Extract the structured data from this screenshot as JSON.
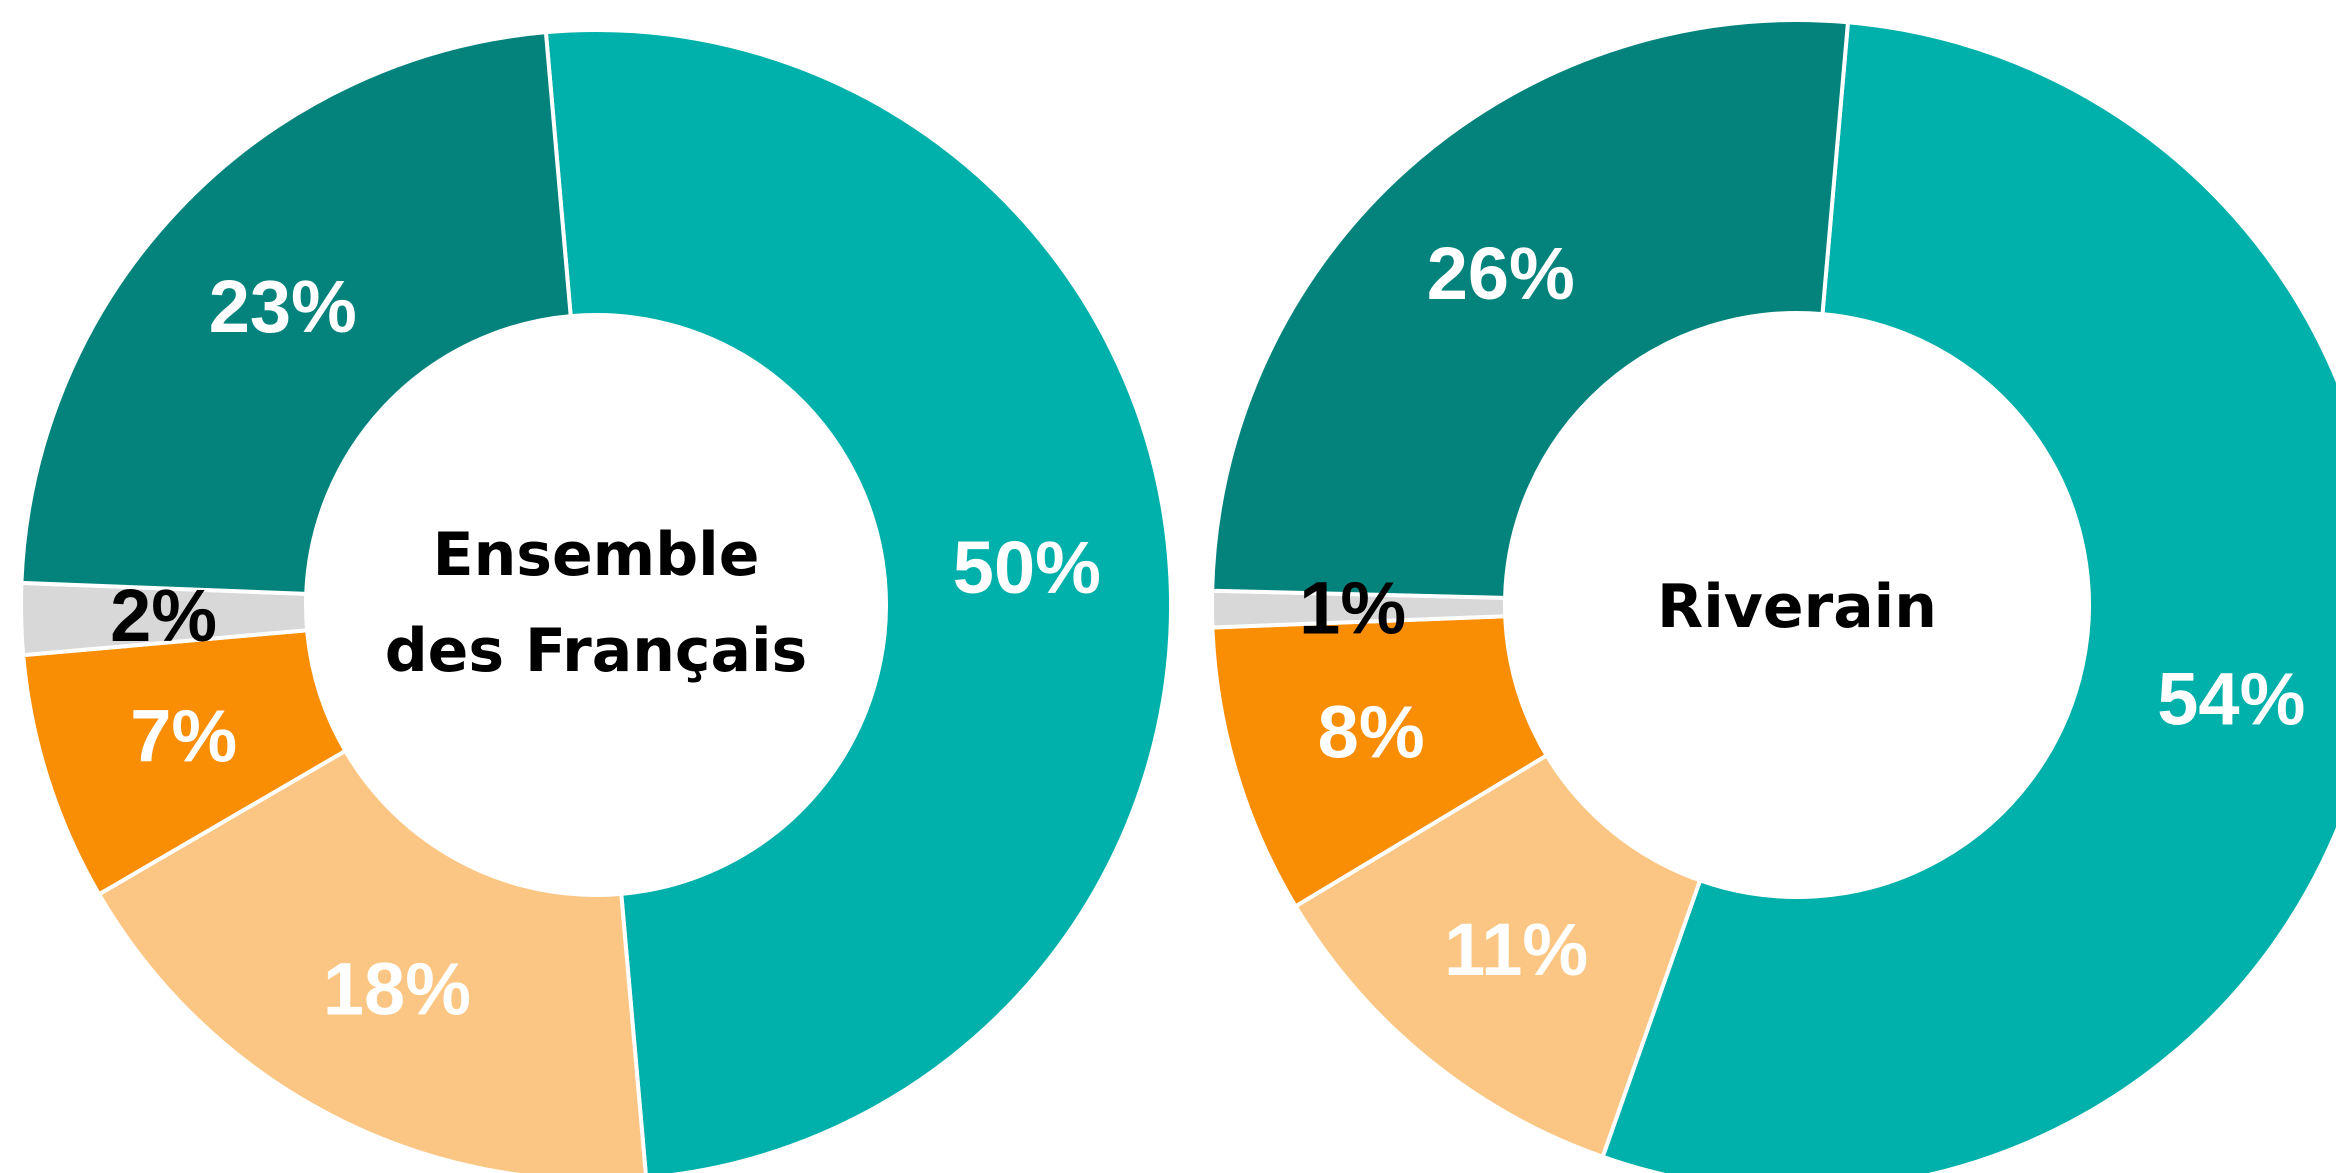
{
  "chart_data": [
    {
      "type": "pie",
      "center_label": [
        "Ensemble",
        "des Français"
      ],
      "series": [
        {
          "value": 50,
          "label": "50%",
          "color": "#00b0aa",
          "label_color": "#ffffff"
        },
        {
          "value": 18,
          "label": "18%",
          "color": "#fbc683",
          "label_color": "#ffffff"
        },
        {
          "value": 7,
          "label": "7%",
          "color": "#f98d04",
          "label_color": "#ffffff"
        },
        {
          "value": 2,
          "label": "2%",
          "color": "#d8d8d8",
          "label_color": "#000000"
        },
        {
          "value": 23,
          "label": "23%",
          "color": "#04837c",
          "label_color": "#ffffff"
        }
      ]
    },
    {
      "type": "pie",
      "center_label": [
        "Riverain"
      ],
      "series": [
        {
          "value": 54,
          "label": "54%",
          "color": "#00b0aa",
          "label_color": "#ffffff"
        },
        {
          "value": 11,
          "label": "11%",
          "color": "#fbc683",
          "label_color": "#ffffff"
        },
        {
          "value": 8,
          "label": "8%",
          "color": "#f98d04",
          "label_color": "#ffffff"
        },
        {
          "value": 1,
          "label": "1%",
          "color": "#d8d8d8",
          "label_color": "#000000"
        },
        {
          "value": 26,
          "label": "26%",
          "color": "#04837c",
          "label_color": "#ffffff"
        }
      ]
    }
  ]
}
